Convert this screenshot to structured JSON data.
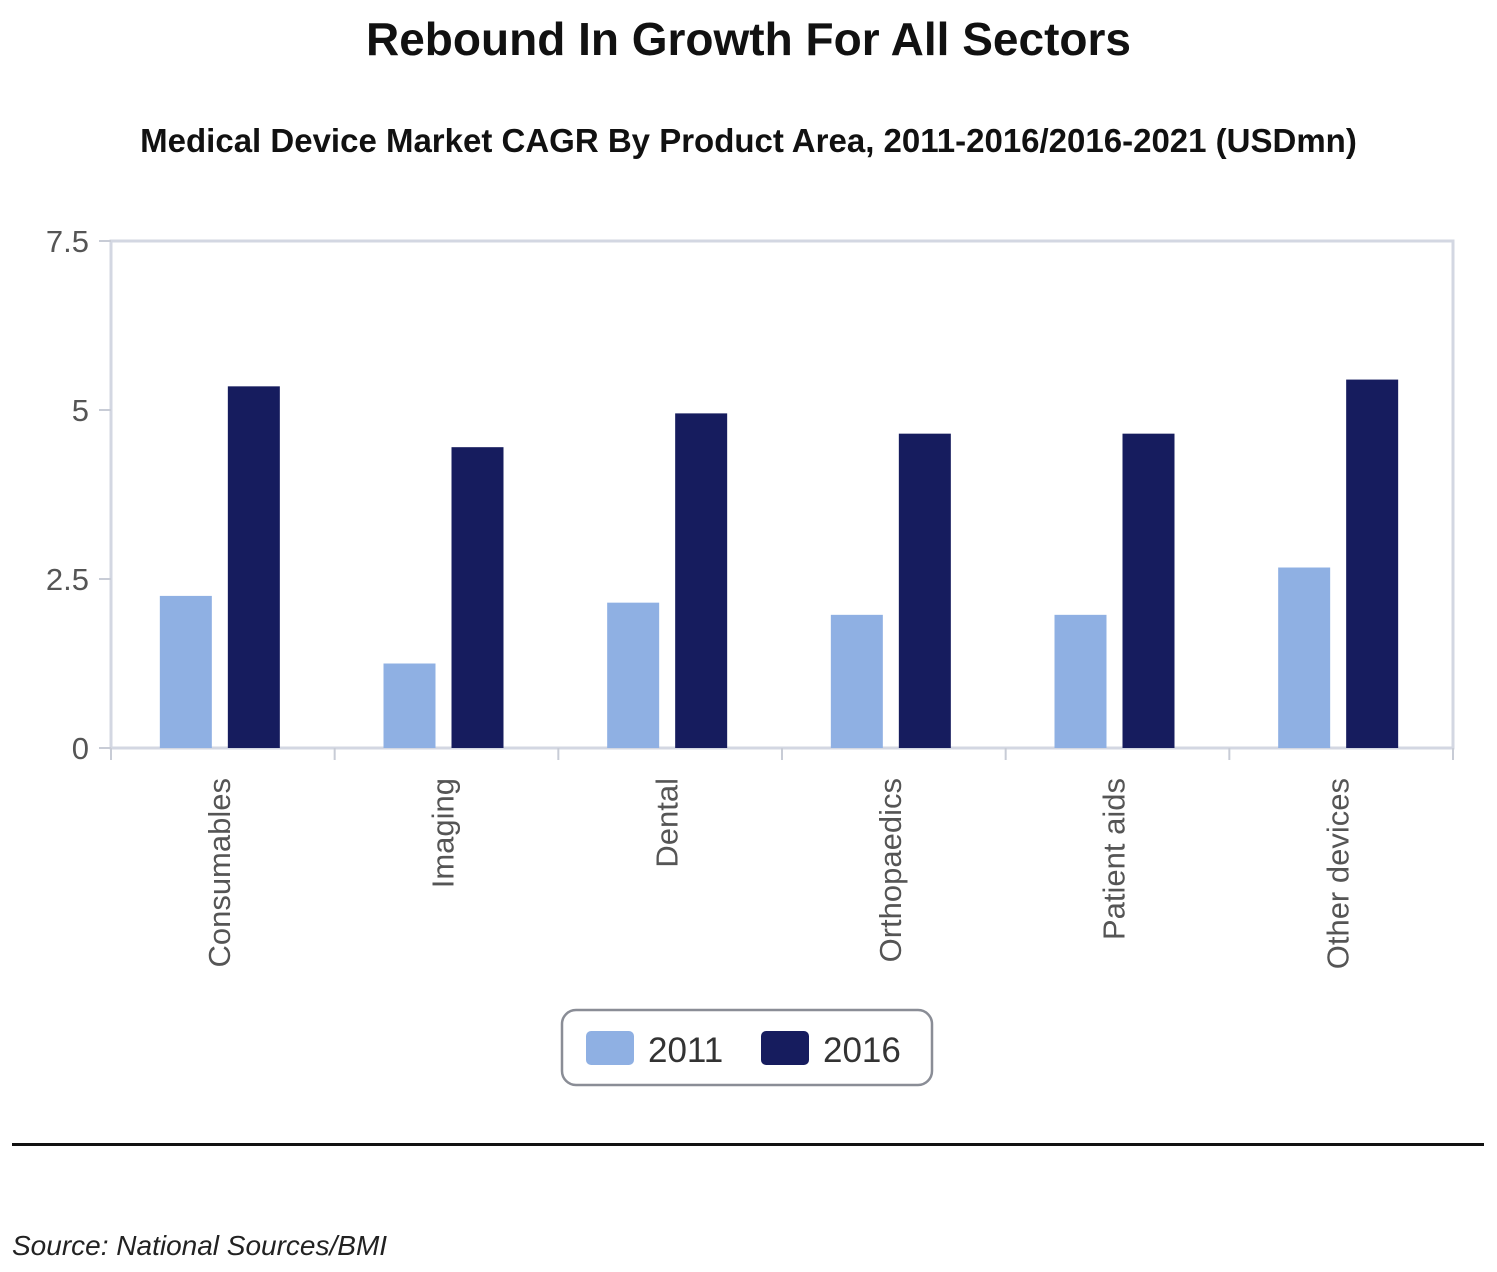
{
  "title": "Rebound In Growth For All Sectors",
  "subtitle": "Medical Device Market CAGR By Product Area, 2011-2016/2016-2021 (USDmn)",
  "source": "Source: National Sources/BMI",
  "chart_data": {
    "type": "bar",
    "categories": [
      "Consumables",
      "Imaging",
      "Dental",
      "Orthopaedics",
      "Patient aids",
      "Other devices"
    ],
    "series": [
      {
        "name": "2011",
        "color": "#8fb0e3",
        "values": [
          2.25,
          1.25,
          2.15,
          1.97,
          1.97,
          2.67
        ]
      },
      {
        "name": "2016",
        "color": "#161c5e",
        "values": [
          5.35,
          4.45,
          4.95,
          4.65,
          4.65,
          5.45
        ]
      }
    ],
    "yticks": [
      "0",
      "2.5",
      "5",
      "7.5"
    ],
    "ylim": [
      0,
      7.5
    ],
    "legend_position": "bottom-center",
    "grid": false
  }
}
